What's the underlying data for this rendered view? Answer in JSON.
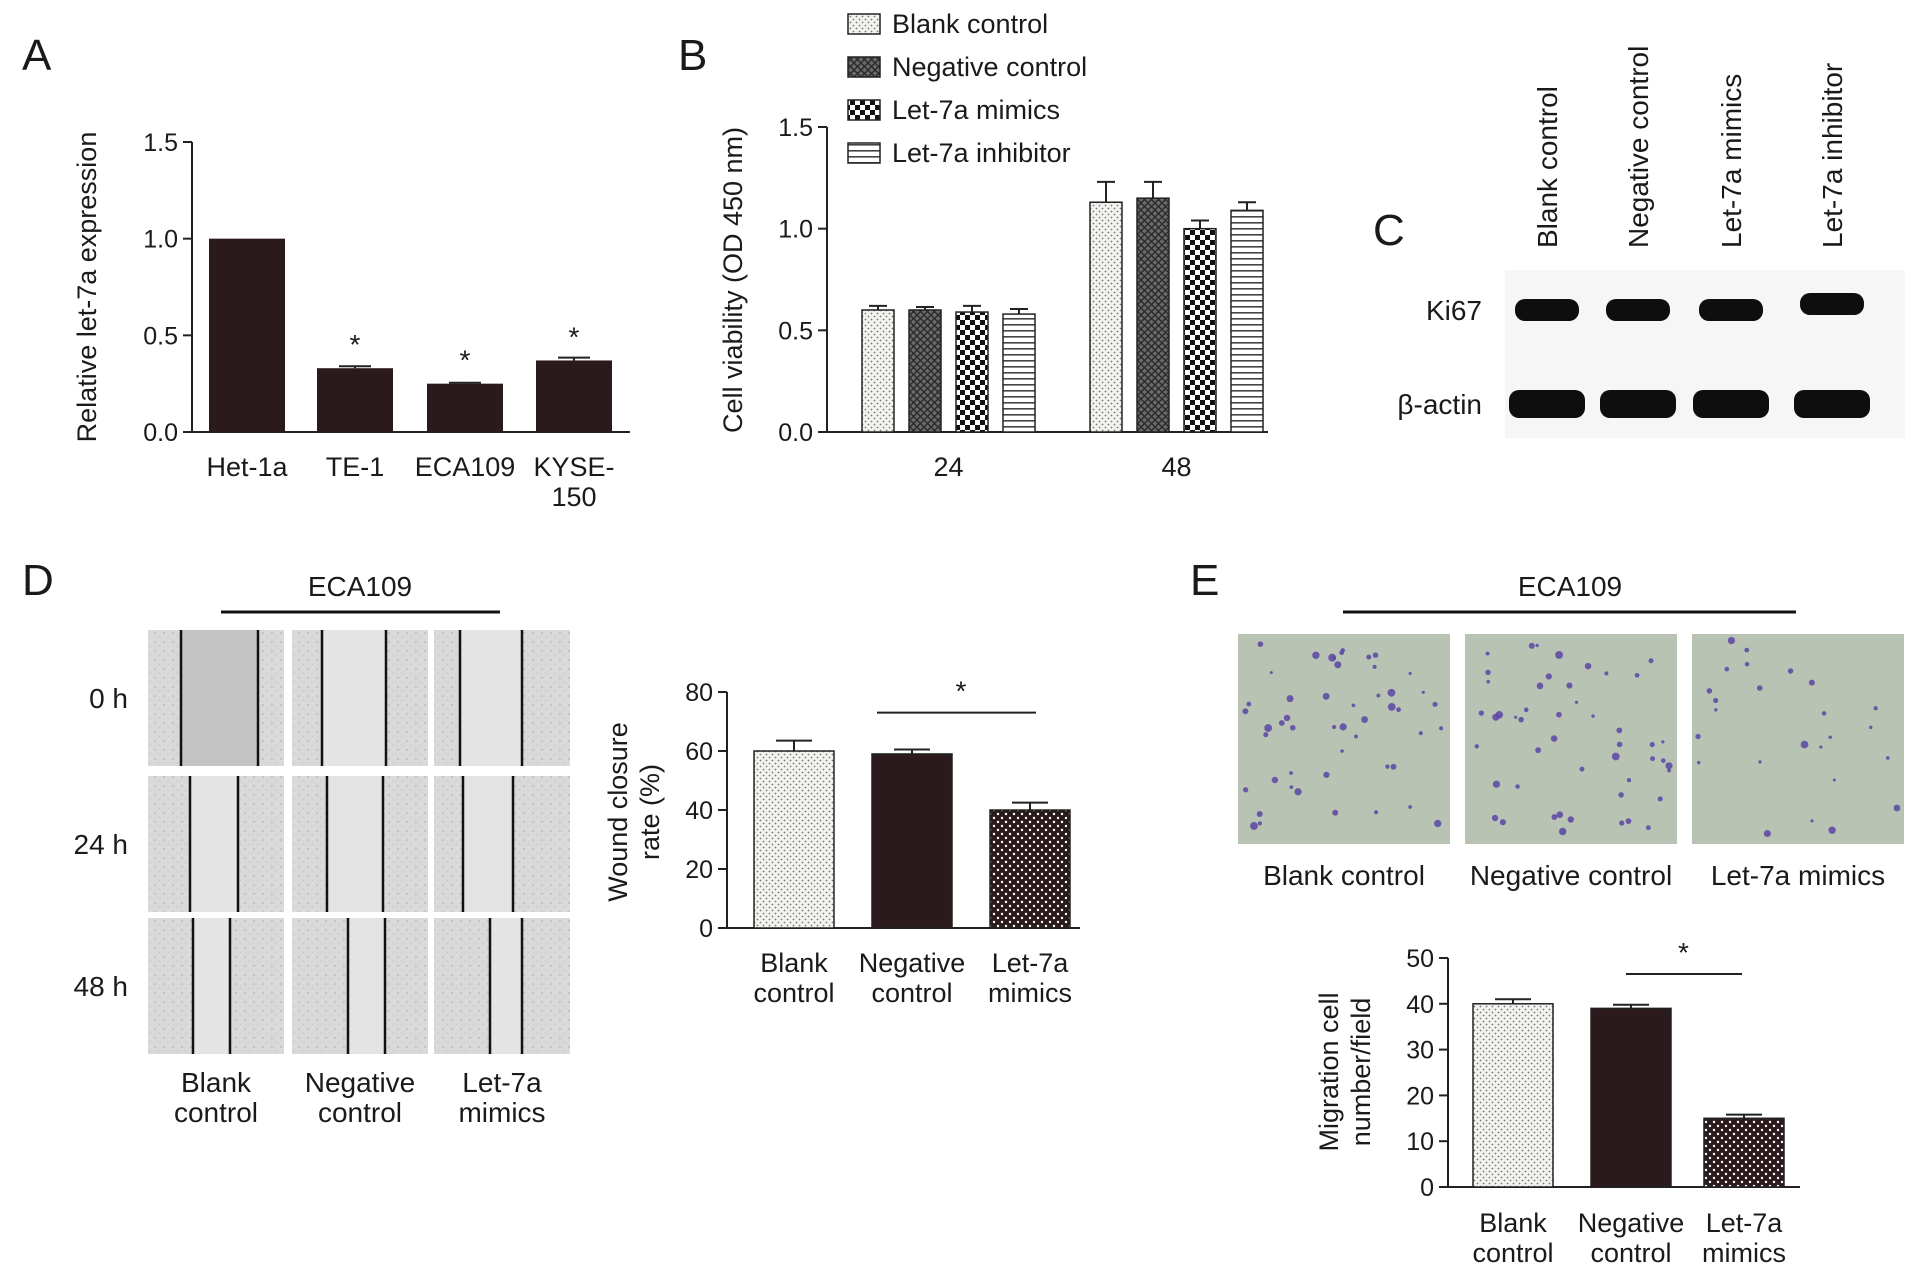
{
  "panels": {
    "A": "A",
    "B": "B",
    "C": "C",
    "D": "D",
    "E": "E"
  },
  "colors": {
    "dark": "#2a1a1c",
    "light": "#f1f1ee",
    "pattern_ink": "#555555",
    "scratch_bg": "#dadada",
    "transwell_bg": "#b9c3b3",
    "cell_stain": "#5a45a6"
  },
  "chart_data": [
    {
      "id": "A",
      "type": "bar",
      "ylabel": "Relative let-7a expression",
      "ylim": [
        0,
        1.5
      ],
      "yticks": [
        "0.0",
        "0.5",
        "1.0",
        "1.5"
      ],
      "categories": [
        "Het-1a",
        "TE-1",
        "ECA109",
        "KYSE-\n150"
      ],
      "values": [
        1.0,
        0.33,
        0.25,
        0.37
      ],
      "errors": [
        0,
        0.01,
        0.005,
        0.015
      ],
      "significance": [
        "",
        "*",
        "*",
        "*"
      ]
    },
    {
      "id": "B",
      "type": "bar",
      "ylabel": "Cell viability (OD 450 nm)",
      "ylim": [
        0,
        1.5
      ],
      "yticks": [
        "0.0",
        "0.5",
        "1.0",
        "1.5"
      ],
      "categories": [
        "24",
        "48"
      ],
      "series": [
        {
          "name": "Blank control",
          "pattern": "dots",
          "values": [
            0.6,
            1.13
          ],
          "errors": [
            0.02,
            0.1
          ]
        },
        {
          "name": "Negative control",
          "pattern": "crosshatch",
          "values": [
            0.6,
            1.15
          ],
          "errors": [
            0.015,
            0.08
          ]
        },
        {
          "name": "Let-7a mimics",
          "pattern": "checker",
          "values": [
            0.59,
            1.0
          ],
          "errors": [
            0.03,
            0.04
          ]
        },
        {
          "name": "Let-7a inhibitor",
          "pattern": "hlines",
          "values": [
            0.58,
            1.09
          ],
          "errors": [
            0.025,
            0.04
          ]
        }
      ],
      "legend": "top"
    },
    {
      "id": "D-chart",
      "type": "bar",
      "ylabel": "Wound closure\nrate (%)",
      "ylim": [
        0,
        80
      ],
      "yticks": [
        "0",
        "20",
        "40",
        "60",
        "80"
      ],
      "categories": [
        "Blank\ncontrol",
        "Negative\ncontrol",
        "Let-7a\nmimics"
      ],
      "values": [
        60,
        59,
        40
      ],
      "errors": [
        3.5,
        1.5,
        2.5
      ],
      "patterns": [
        "dots",
        "solid",
        "sparsedots"
      ],
      "significance_bracket": {
        "from": 1,
        "to": 2,
        "label": "*"
      }
    },
    {
      "id": "E-chart",
      "type": "bar",
      "ylabel": "Migration cell\nnumber/field",
      "ylim": [
        0,
        50
      ],
      "yticks": [
        "0",
        "10",
        "20",
        "30",
        "40",
        "50"
      ],
      "categories": [
        "Blank\ncontrol",
        "Negative\ncontrol",
        "Let-7a\nmimics"
      ],
      "values": [
        40,
        39,
        15
      ],
      "errors": [
        1.0,
        0.8,
        0.8
      ],
      "patterns": [
        "dots",
        "solid",
        "sparsedots"
      ],
      "significance_bracket": {
        "from": 1,
        "to": 2,
        "label": "*"
      }
    }
  ],
  "blot": {
    "columns": [
      "Blank control",
      "Negative control",
      "Let-7a mimics",
      "Let-7a inhibitor"
    ],
    "rows": [
      "Ki67",
      "β-actin"
    ]
  },
  "scratch": {
    "cell_line": "ECA109",
    "rows": [
      "0 h",
      "24 h",
      "48 h"
    ],
    "columns": [
      "Blank\ncontrol",
      "Negative\ncontrol",
      "Let-7a\nmimics"
    ]
  },
  "transwell": {
    "cell_line": "ECA109",
    "columns": [
      "Blank control",
      "Negative control",
      "Let-7a mimics"
    ]
  }
}
